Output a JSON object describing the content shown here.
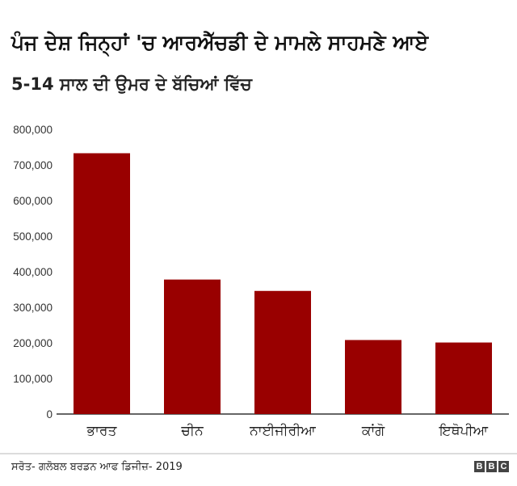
{
  "chart_data": {
    "type": "bar",
    "title": "ਪੰਜ ਦੇਸ਼ ਜਿਨ੍ਹਾਂ 'ਚ ਆਰਐੱਚਡੀ ਦੇ ਮਾਮਲੇ ਸਾਹਮਣੇ ਆਏ",
    "subtitle": "5-14 ਸਾਲ ਦੀ ਉਮਰ ਦੇ ਬੱਚਿਆਂ ਵਿੱਚ",
    "categories": [
      "ਭਾਰਤ",
      "ਚੀਨ",
      "ਨਾਈਜੀਰੀਆ",
      "ਕਾਂਗੋ",
      "ਇਥੋਪੀਆ"
    ],
    "values": [
      733000,
      378000,
      346000,
      208000,
      201000
    ],
    "yticks": [
      "0",
      "100,000",
      "200,000",
      "300,000",
      "400,000",
      "500,000",
      "600,000",
      "700,000",
      "800,000"
    ],
    "ylim": [
      0,
      800000
    ],
    "bar_color": "#990000",
    "grid": false,
    "legend": "none"
  },
  "footer": {
    "source": "ਸਰੋਤ- ਗਲੋਬਲ ਬਰਡਨ ਆਫ ਡਿਜੀਜ਼- 2019",
    "logo_letters": [
      "B",
      "B",
      "C"
    ]
  }
}
